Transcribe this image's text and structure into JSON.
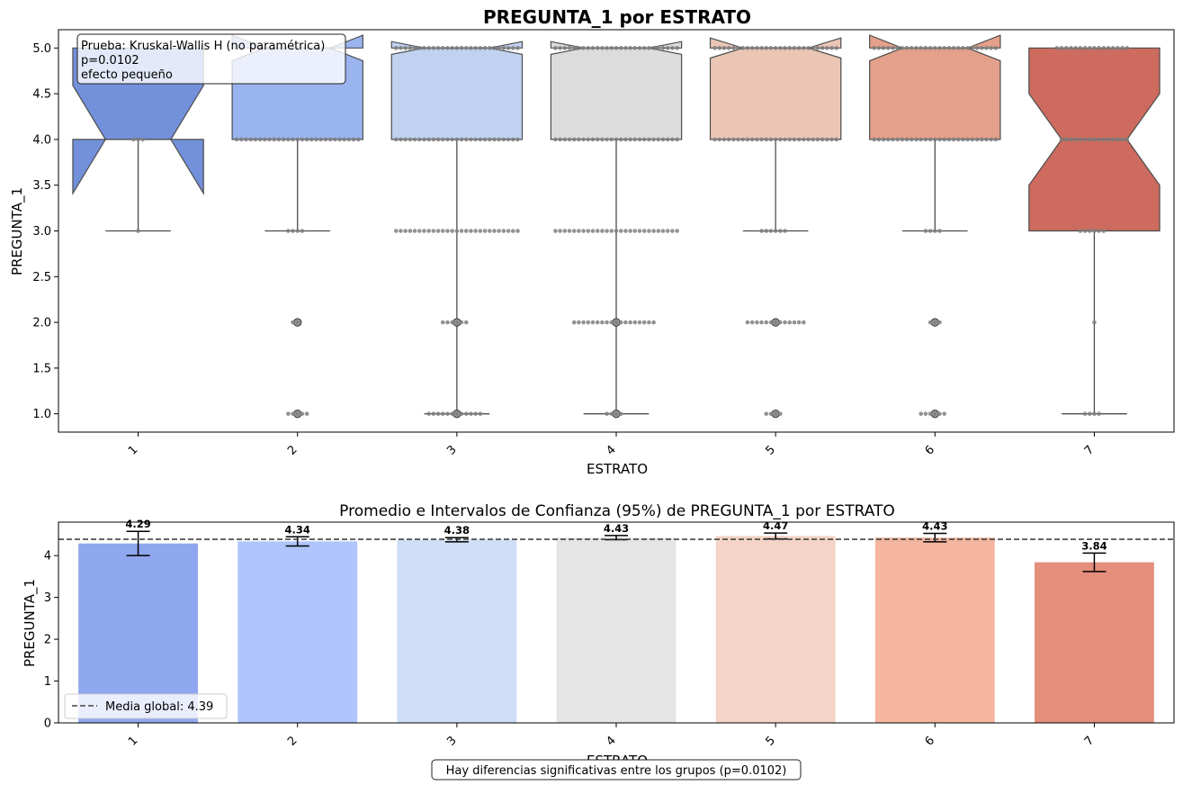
{
  "chart_data": [
    {
      "type": "box",
      "title": "PREGUNTA_1 por ESTRATO",
      "xlabel": "ESTRATO",
      "ylabel": "PREGUNTA_1",
      "categories": [
        "1",
        "2",
        "3",
        "4",
        "5",
        "6",
        "7"
      ],
      "ylim": [
        0.8,
        5.2
      ],
      "yticks": [
        "1.0",
        "1.5",
        "2.0",
        "2.5",
        "3.0",
        "3.5",
        "4.0",
        "4.5",
        "5.0"
      ],
      "notched": true,
      "grid": false,
      "boxes": [
        {
          "category": "1",
          "q1": 4.0,
          "median": 4.0,
          "q3": 5.0,
          "whisker_low": 3.0,
          "whisker_high": 5.0,
          "notch_low": 3.41,
          "notch_high": 4.59,
          "outliers": [],
          "color": "#7390db"
        },
        {
          "category": "2",
          "q1": 4.0,
          "median": 5.0,
          "q3": 5.0,
          "whisker_low": 3.0,
          "whisker_high": 5.0,
          "notch_low": 4.86,
          "notch_high": 5.14,
          "outliers": [
            2.0,
            1.0
          ],
          "color": "#9ab4f0"
        },
        {
          "category": "3",
          "q1": 4.0,
          "median": 5.0,
          "q3": 5.0,
          "whisker_low": 1.0,
          "whisker_high": 5.0,
          "notch_low": 4.93,
          "notch_high": 5.07,
          "outliers": [
            2.0,
            1.0
          ],
          "color": "#c0d2f0"
        },
        {
          "category": "4",
          "q1": 4.0,
          "median": 5.0,
          "q3": 5.0,
          "whisker_low": 1.0,
          "whisker_high": 5.0,
          "notch_low": 4.93,
          "notch_high": 5.07,
          "outliers": [
            2.0,
            1.0
          ],
          "color": "#dcdcdc"
        },
        {
          "category": "5",
          "q1": 4.0,
          "median": 5.0,
          "q3": 5.0,
          "whisker_low": 3.0,
          "whisker_high": 5.0,
          "notch_low": 4.89,
          "notch_high": 5.11,
          "outliers": [
            2.0,
            1.0
          ],
          "color": "#ebc6b5"
        },
        {
          "category": "6",
          "q1": 4.0,
          "median": 5.0,
          "q3": 5.0,
          "whisker_low": 3.0,
          "whisker_high": 5.0,
          "notch_low": 4.86,
          "notch_high": 5.14,
          "outliers": [
            2.0,
            1.0
          ],
          "color": "#e4a08a"
        },
        {
          "category": "7",
          "q1": 3.0,
          "median": 4.0,
          "q3": 5.0,
          "whisker_low": 1.0,
          "whisker_high": 5.0,
          "notch_low": 3.5,
          "notch_high": 4.5,
          "outliers": [],
          "color": "#cc6b5e"
        }
      ],
      "swarm": [
        {
          "category": "1",
          "levels": [
            {
              "y": 4.0,
              "n": 3
            },
            {
              "y": 3.0,
              "n": 1
            }
          ]
        },
        {
          "category": "2",
          "levels": [
            {
              "y": 5.0,
              "n": 8
            },
            {
              "y": 4.0,
              "n": 40
            },
            {
              "y": 3.0,
              "n": 4
            },
            {
              "y": 2.0,
              "n": 2
            },
            {
              "y": 1.0,
              "n": 5
            }
          ]
        },
        {
          "category": "3",
          "levels": [
            {
              "y": 5.0,
              "n": 48
            },
            {
              "y": 4.0,
              "n": 48
            },
            {
              "y": 3.0,
              "n": 40
            },
            {
              "y": 2.0,
              "n": 6
            },
            {
              "y": 1.0,
              "n": 12
            }
          ]
        },
        {
          "category": "4",
          "levels": [
            {
              "y": 5.0,
              "n": 48
            },
            {
              "y": 4.0,
              "n": 48
            },
            {
              "y": 3.0,
              "n": 36
            },
            {
              "y": 2.0,
              "n": 18
            },
            {
              "y": 1.0,
              "n": 4
            }
          ]
        },
        {
          "category": "5",
          "levels": [
            {
              "y": 5.0,
              "n": 48
            },
            {
              "y": 4.0,
              "n": 48
            },
            {
              "y": 3.0,
              "n": 6
            },
            {
              "y": 2.0,
              "n": 13
            },
            {
              "y": 1.0,
              "n": 4
            }
          ]
        },
        {
          "category": "6",
          "levels": [
            {
              "y": 5.0,
              "n": 48
            },
            {
              "y": 4.0,
              "n": 48
            },
            {
              "y": 3.0,
              "n": 4
            },
            {
              "y": 2.0,
              "n": 3
            },
            {
              "y": 1.0,
              "n": 6
            }
          ]
        },
        {
          "category": "7",
          "levels": [
            {
              "y": 5.0,
              "n": 16
            },
            {
              "y": 4.0,
              "n": 15
            },
            {
              "y": 3.0,
              "n": 6
            },
            {
              "y": 2.0,
              "n": 1
            },
            {
              "y": 1.0,
              "n": 4
            }
          ]
        }
      ],
      "annotation": {
        "lines": [
          "Prueba: Kruskal-Wallis H (no paramétrica)",
          "p=0.0102",
          "efecto pequeño"
        ]
      }
    },
    {
      "type": "bar",
      "title": "Promedio e Intervalos de Confianza (95%) de PREGUNTA_1 por ESTRATO",
      "xlabel": "ESTRATO",
      "ylabel": "PREGUNTA_1",
      "categories": [
        "1",
        "2",
        "3",
        "4",
        "5",
        "6",
        "7"
      ],
      "values": [
        4.29,
        4.34,
        4.38,
        4.43,
        4.47,
        4.43,
        3.84
      ],
      "value_labels": [
        "4.29",
        "4.34",
        "4.38",
        "4.43",
        "4.47",
        "4.43",
        "3.84"
      ],
      "ci_low": [
        4.0,
        4.23,
        4.33,
        4.38,
        4.4,
        4.33,
        3.62
      ],
      "ci_high": [
        4.58,
        4.45,
        4.43,
        4.48,
        4.54,
        4.53,
        4.06
      ],
      "colors": [
        "#8fa7ee",
        "#afc5fc",
        "#cfdef6",
        "#e5e5e5",
        "#f4d4c6",
        "#f5b59f",
        "#e58e7c"
      ],
      "ylim": [
        0,
        4.8
      ],
      "yticks": [
        "0",
        "1",
        "2",
        "3",
        "4"
      ],
      "reference_line": {
        "value": 4.39,
        "label": "Media global: 4.39"
      },
      "legend_position": "lower-left",
      "grid": false
    }
  ],
  "footer_note": "Hay diferencias significativas entre los grupos (p=0.0102)"
}
